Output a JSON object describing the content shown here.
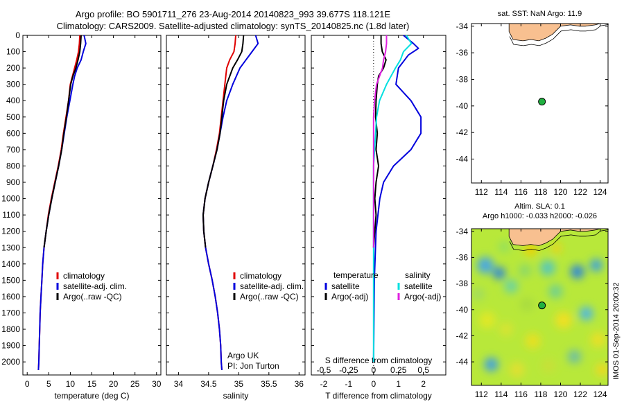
{
  "header": {
    "title1": "Argo profile: BO 5901711_276 23-Aug-2014 20140823_993 39.677S 118.121E",
    "title2": "Climatology: CARS2009. Satellite-adjusted climatology: synTS_20140825.nc (1.8d later)"
  },
  "colors": {
    "climatology": "#e00000",
    "satellite": "#0000dd",
    "argo": "#000000",
    "cyan": "#00e0e0",
    "magenta": "#e020e0",
    "land": "#f8c090",
    "marker": "#20b040"
  },
  "chart_data": [
    {
      "type": "line",
      "id": "temperature",
      "xlabel": "temperature (deg C)",
      "xlim": [
        -1,
        31
      ],
      "ylim": [
        2080,
        0
      ],
      "xticks": [
        0,
        5,
        10,
        15,
        20,
        25,
        30
      ],
      "yticks": [
        0,
        100,
        200,
        300,
        400,
        500,
        600,
        700,
        800,
        900,
        1000,
        1100,
        1200,
        1300,
        1400,
        1500,
        1600,
        1700,
        1800,
        1900,
        2000
      ],
      "legend": [
        "climatology",
        "satellite-adj. clim.",
        "Argo(..raw -QC)"
      ],
      "series": [
        {
          "name": "climatology",
          "color": "#e00000",
          "depth": [
            0,
            50,
            100,
            150,
            200,
            250,
            300,
            400,
            500,
            600,
            700,
            800,
            900,
            1000,
            1100,
            1200,
            1300,
            1400,
            1500,
            1600,
            1700,
            1800,
            1900,
            2000,
            2050
          ],
          "values": [
            12.2,
            12.1,
            11.9,
            11.5,
            11.0,
            10.5,
            10.0,
            9.6,
            9.0,
            8.4,
            7.9,
            7.2,
            6.4,
            5.6,
            4.9,
            4.4,
            3.9,
            3.6,
            3.4,
            3.2,
            3.0,
            2.9,
            2.8,
            2.7,
            2.6
          ]
        },
        {
          "name": "satellite-adj. clim.",
          "color": "#0000dd",
          "depth": [
            0,
            50,
            100,
            150,
            200,
            250,
            300,
            400,
            500,
            600,
            700,
            800,
            900,
            1000,
            1100,
            1200,
            1300,
            1400,
            1500,
            1600,
            1700,
            1800,
            1900,
            2000,
            2050
          ],
          "values": [
            13.2,
            13.6,
            13.0,
            12.5,
            11.6,
            11.0,
            10.6,
            9.9,
            9.2,
            8.6,
            8.0,
            7.3,
            6.5,
            5.7,
            5.0,
            4.4,
            3.9,
            3.6,
            3.4,
            3.2,
            3.0,
            2.9,
            2.8,
            2.7,
            2.6
          ]
        },
        {
          "name": "Argo(..raw -QC)",
          "color": "#000000",
          "depth": [
            0,
            50,
            100,
            150,
            200,
            250,
            300,
            400,
            500,
            600,
            700,
            800,
            900,
            1000,
            1100,
            1200,
            1300
          ],
          "values": [
            12.5,
            12.4,
            12.2,
            11.8,
            11.3,
            10.6,
            10.1,
            9.6,
            9.1,
            8.5,
            8.0,
            7.3,
            6.5,
            5.7,
            5.0,
            4.4,
            3.9
          ]
        }
      ]
    },
    {
      "type": "line",
      "id": "salinity",
      "xlabel": "salinity",
      "xlim": [
        33.8,
        36.1
      ],
      "ylim": [
        2080,
        0
      ],
      "xticks": [
        34,
        34.5,
        35,
        35.5,
        36
      ],
      "legend": [
        "climatology",
        "satellite-adj. clim.",
        "Argo(..raw -QC)"
      ],
      "annotation": [
        "Argo UK",
        "PI: Jon Turton"
      ],
      "series": [
        {
          "name": "climatology",
          "color": "#e00000",
          "depth": [
            0,
            50,
            100,
            150,
            200,
            300,
            400,
            500,
            600,
            700,
            800,
            900,
            1000,
            1100,
            1200,
            1300,
            1400,
            1500,
            1600,
            1700,
            1800,
            1900,
            2000,
            2050
          ],
          "values": [
            34.95,
            34.94,
            34.92,
            34.85,
            34.8,
            34.77,
            34.74,
            34.71,
            34.68,
            34.63,
            34.57,
            34.5,
            34.44,
            34.41,
            34.42,
            34.45,
            34.5,
            34.56,
            34.61,
            34.65,
            34.68,
            34.7,
            34.71,
            34.72
          ]
        },
        {
          "name": "satellite-adj. clim.",
          "color": "#0000dd",
          "depth": [
            0,
            50,
            100,
            150,
            200,
            300,
            400,
            500,
            600,
            700,
            800,
            900,
            1000,
            1100,
            1200,
            1300,
            1400,
            1500,
            1600,
            1700,
            1800,
            1900,
            2000,
            2050
          ],
          "values": [
            35.28,
            35.32,
            35.22,
            35.12,
            35.02,
            34.9,
            34.8,
            34.74,
            34.69,
            34.64,
            34.57,
            34.5,
            34.44,
            34.41,
            34.42,
            34.45,
            34.5,
            34.56,
            34.61,
            34.65,
            34.68,
            34.7,
            34.71,
            34.72
          ]
        },
        {
          "name": "Argo(..raw -QC)",
          "color": "#000000",
          "depth": [
            0,
            50,
            100,
            150,
            200,
            300,
            400,
            500,
            600,
            700,
            800,
            900,
            1000,
            1100,
            1200,
            1300
          ],
          "values": [
            35.08,
            35.07,
            35.05,
            34.98,
            34.9,
            34.8,
            34.75,
            34.72,
            34.69,
            34.64,
            34.57,
            34.5,
            34.44,
            34.41,
            34.42,
            34.45
          ]
        }
      ]
    },
    {
      "type": "line",
      "id": "difference",
      "xlabel": "T difference from climatology",
      "xlabel_top": "S difference from climatology",
      "xlim": [
        -2.5,
        2.9
      ],
      "ylim": [
        2080,
        0
      ],
      "xticks": [
        -2,
        -1,
        0,
        1,
        2
      ],
      "xticks_top": [
        -0.5,
        -0.25,
        0,
        0.25,
        0.5
      ],
      "legend_groups": [
        {
          "title": "temperature",
          "items": [
            "satellite",
            "Argo(-adj)"
          ]
        },
        {
          "title": "salinity",
          "items": [
            "satellite",
            "Argo(-adj)"
          ]
        }
      ],
      "series": [
        {
          "name": "temperature satellite",
          "color": "#0000dd",
          "depth": [
            0,
            50,
            80,
            120,
            200,
            300,
            400,
            500,
            600,
            700,
            800,
            900,
            1000,
            1200,
            1500,
            2000
          ],
          "values": [
            1.2,
            1.6,
            1.8,
            1.4,
            1.0,
            0.9,
            1.5,
            1.9,
            1.9,
            1.5,
            0.8,
            0.4,
            0.25,
            0.1,
            0.03,
            0.0
          ]
        },
        {
          "name": "temperature Argo(-adj)",
          "color": "#000000",
          "depth": [
            0,
            50,
            100,
            150,
            200,
            250,
            300,
            400,
            500,
            600,
            700,
            800,
            900,
            1000,
            1100,
            1200,
            1300
          ],
          "values": [
            0.3,
            0.3,
            0.35,
            0.5,
            0.4,
            0.2,
            0.15,
            0.1,
            0.08,
            0.15,
            0.1,
            0.2,
            0.1,
            0.05,
            0.1,
            0.05,
            0.0
          ]
        },
        {
          "name": "salinity satellite",
          "color": "#00e0e0",
          "depth": [
            0,
            50,
            100,
            150,
            200,
            300,
            400,
            500,
            600,
            700,
            800,
            900,
            1000,
            1200,
            1500,
            2000
          ],
          "values": [
            0.33,
            0.38,
            0.3,
            0.27,
            0.22,
            0.13,
            0.06,
            0.03,
            0.02,
            0.01,
            0.0,
            0.0,
            0.0,
            0.0,
            0.0,
            0.0
          ]
        },
        {
          "name": "salinity Argo(-adj)",
          "color": "#e020e0",
          "depth": [
            0,
            50,
            100,
            150,
            200,
            300,
            400,
            500,
            600,
            700,
            800,
            900,
            1000,
            1100,
            1200,
            1300
          ],
          "values": [
            0.13,
            0.13,
            0.12,
            0.1,
            0.09,
            0.03,
            0.01,
            0.0,
            0.0,
            0.0,
            0.0,
            0.0,
            0.0,
            0.0,
            0.0,
            0.0
          ]
        }
      ]
    },
    {
      "type": "scatter",
      "id": "map-sst",
      "title": "sat. SST: NaN Argo: 11.9",
      "xlim": [
        111,
        124.8
      ],
      "ylim": [
        -45.8,
        -33.8
      ],
      "xticks": [
        112,
        114,
        116,
        118,
        120,
        122,
        124
      ],
      "yticks": [
        -34,
        -36,
        -38,
        -40,
        -42,
        -44
      ],
      "point": {
        "lon": 118.121,
        "lat": -39.677
      }
    },
    {
      "type": "heatmap",
      "id": "map-sla",
      "title1": "Altim. SLA: 0.1",
      "title2": "Argo h1000: -0.033 h2000: -0.026",
      "xlim": [
        111,
        124.8
      ],
      "ylim": [
        -45.8,
        -33.8
      ],
      "xticks": [
        112,
        114,
        116,
        118,
        120,
        122,
        124
      ],
      "yticks": [
        -34,
        -36,
        -38,
        -40,
        -42,
        -44
      ],
      "point": {
        "lon": 118.121,
        "lat": -39.677
      }
    }
  ],
  "side_label": "IMOS 01-Sep-2014 20:00:32"
}
